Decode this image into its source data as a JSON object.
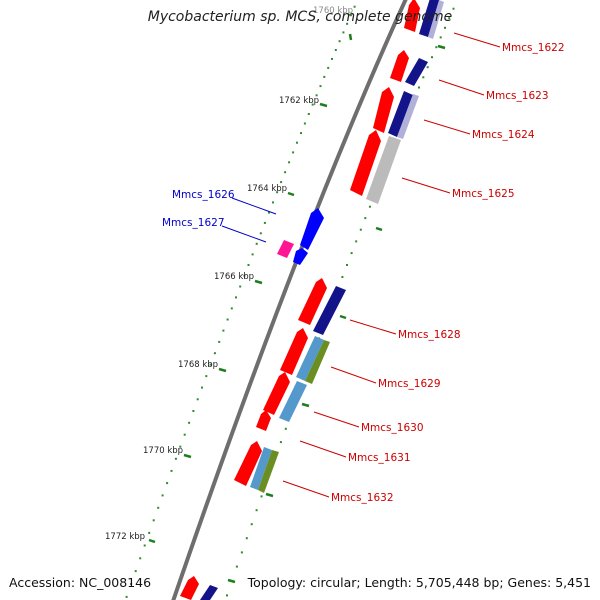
{
  "title": "Mycobacterium sp. MCS, complete genome",
  "footer": {
    "accession": "Accession: NC_008146",
    "summary": "Topology: circular; Length: 5,705,448 bp; Genes: 5,451"
  },
  "colors": {
    "backbone": "#777777",
    "tick": "#2e8b2e",
    "label_right": "#cc0000",
    "label_left": "#0000cc",
    "kbp_label": "#222222"
  },
  "scale_labels": [
    {
      "text": "1760 kbp",
      "kbp": 1760
    },
    {
      "text": "1762 kbp",
      "kbp": 1762
    },
    {
      "text": "1764 kbp",
      "kbp": 1764
    },
    {
      "text": "1766 kbp",
      "kbp": 1766
    },
    {
      "text": "1768 kbp",
      "kbp": 1768
    },
    {
      "text": "1770 kbp",
      "kbp": 1770
    },
    {
      "text": "1772 kbp",
      "kbp": 1772
    }
  ],
  "genes": [
    {
      "name": "Mmcs_1622",
      "strand": "+",
      "color": "#ff0000",
      "cog": "#1a1a8c"
    },
    {
      "name": "Mmcs_1623",
      "strand": "+",
      "color": "#ff0000",
      "cog": "#1a1a8c"
    },
    {
      "name": "Mmcs_1624",
      "strand": "+",
      "color": "#ff0000",
      "cog": "#1a1a8c"
    },
    {
      "name": "Mmcs_1625",
      "strand": "+",
      "color": "#ff0000",
      "cog": "#bbbbbb"
    },
    {
      "name": "Mmcs_1626",
      "strand": "-",
      "color": "#0000ff"
    },
    {
      "name": "Mmcs_1627",
      "strand": "-",
      "color": "#ff1493"
    },
    {
      "name": "Mmcs_1628",
      "strand": "+",
      "color": "#ff0000",
      "cog": "#1a1a8c"
    },
    {
      "name": "Mmcs_1629",
      "strand": "+",
      "color": "#ff0000",
      "cog": "#5599cc"
    },
    {
      "name": "Mmcs_1630",
      "strand": "+",
      "color": "#ff0000",
      "cog": "#5599cc"
    },
    {
      "name": "Mmcs_1631",
      "strand": "+",
      "color": "#ff0000"
    },
    {
      "name": "Mmcs_1632",
      "strand": "+",
      "color": "#ff0000",
      "cog": "#5599cc"
    }
  ]
}
